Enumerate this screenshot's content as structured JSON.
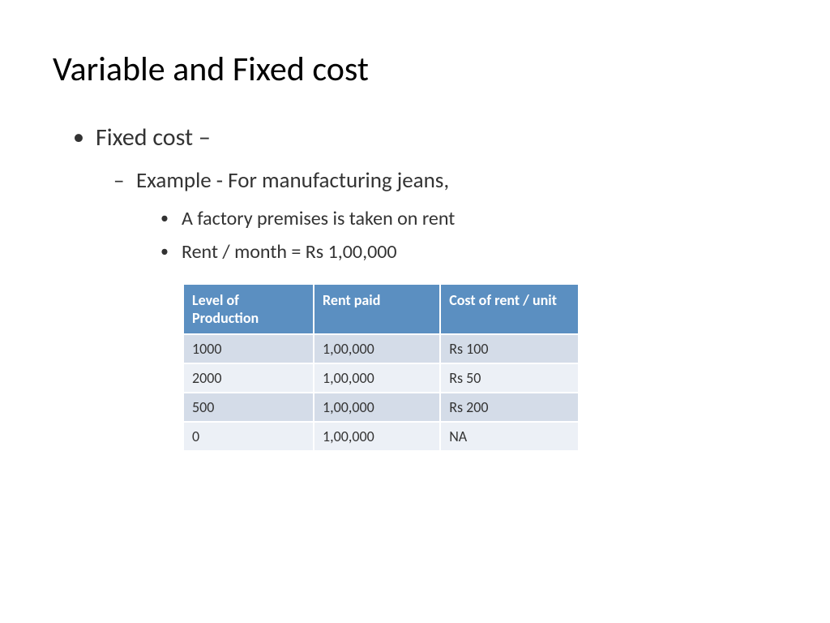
{
  "title": "Variable and Fixed cost",
  "bullets": {
    "l1": "Fixed cost –",
    "l2": "Example - For manufacturing jeans,",
    "l3a": "A  factory premises is taken on rent",
    "l3b": "Rent / month = Rs 1,00,000"
  },
  "table": {
    "columns": [
      "Level of Production",
      "Rent paid",
      "Cost of rent / unit"
    ],
    "rows": [
      [
        "1000",
        "1,00,000",
        "Rs 100"
      ],
      [
        "2000",
        "1,00,000",
        "Rs 50"
      ],
      [
        "500",
        "1,00,000",
        "Rs 200"
      ],
      [
        "0",
        "1,00,000",
        "NA"
      ]
    ],
    "header_bg": "#5b8fc1",
    "header_text_color": "#ffffff",
    "row_odd_bg": "#d4dce8",
    "row_even_bg": "#ecf0f6",
    "border_color": "#ffffff",
    "font_size": 18
  },
  "colors": {
    "background": "#ffffff",
    "text": "#000000",
    "body_text": "#333333"
  },
  "fonts": {
    "title_size": 42,
    "l1_size": 30,
    "l2_size": 27,
    "l3_size": 24
  }
}
